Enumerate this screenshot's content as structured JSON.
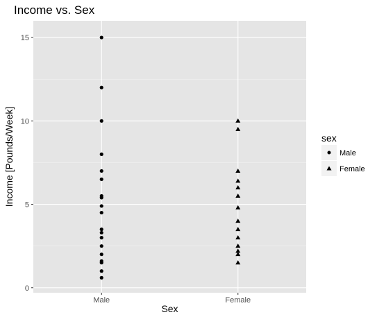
{
  "chart_data": {
    "type": "scatter",
    "title": "Income vs. Sex",
    "xlabel": "Sex",
    "ylabel": "Income [Pounds/Week]",
    "categories": [
      "Male",
      "Female"
    ],
    "ylim": [
      -0.3,
      16
    ],
    "yticks": [
      0,
      5,
      10,
      15
    ],
    "grid": true,
    "legend": {
      "title": "sex",
      "placement": "right",
      "entries": [
        {
          "label": "Male",
          "shape": "circle"
        },
        {
          "label": "Female",
          "shape": "triangle"
        }
      ]
    },
    "series": [
      {
        "name": "Male",
        "shape": "circle",
        "x": "Male",
        "values": [
          15,
          12,
          10,
          8,
          7,
          6.5,
          5.5,
          5.4,
          4.9,
          4.5,
          3.5,
          3.3,
          3,
          2.5,
          2,
          1.6,
          1.5,
          1,
          0.6
        ]
      },
      {
        "name": "Female",
        "shape": "triangle",
        "x": "Female",
        "values": [
          10,
          9.5,
          7,
          6.4,
          6,
          5.5,
          4.8,
          4,
          3.5,
          3,
          2.5,
          2.2,
          2,
          1.5
        ]
      }
    ],
    "colors": {
      "panel": "#e5e5e5",
      "grid_major": "#ffffff",
      "grid_minor": "#f2f2f2",
      "point": "#000000",
      "tick_text": "#4d4d4d"
    }
  }
}
